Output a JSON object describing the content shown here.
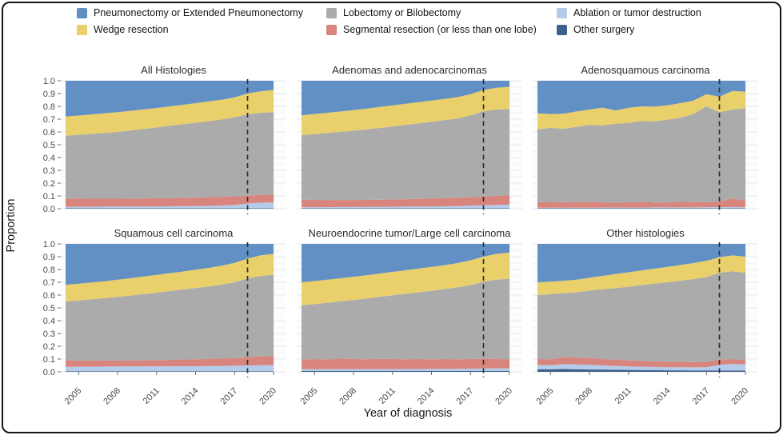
{
  "figure": {
    "ylabel": "Proportion",
    "xlabel": "Year of diagnosis",
    "outer_border_color": "#161616",
    "background_color": "#ffffff"
  },
  "legend": {
    "items": [
      {
        "label": "Pneumonectomy or Extended Pneumonectomy"
      },
      {
        "label": "Lobectomy or Bilobectomy"
      },
      {
        "label": "Ablation or tumor destruction"
      },
      {
        "label": "Wedge resection"
      },
      {
        "label": "Segmental resection (or less than one lobe)"
      },
      {
        "label": "Other surgery"
      }
    ]
  },
  "chart_data": {
    "type": "area",
    "stacked": true,
    "normalized": true,
    "grid": true,
    "legend_position": "top",
    "x_years": [
      2004,
      2005,
      2006,
      2007,
      2008,
      2009,
      2010,
      2011,
      2012,
      2013,
      2014,
      2015,
      2016,
      2017,
      2018,
      2019,
      2020
    ],
    "x_tick_years": [
      2005,
      2008,
      2011,
      2014,
      2017,
      2020
    ],
    "y_ticks": [
      0,
      0.1,
      0.2,
      0.3,
      0.4,
      0.5,
      0.6,
      0.7,
      0.8,
      0.9,
      1.0
    ],
    "ylim": [
      0,
      1
    ],
    "reference_line_year": 2018,
    "reference_line_style": "dashed",
    "series_colors": {
      "Pneumonectomy or Extended Pneumonectomy": "#6290c5",
      "Wedge resection": "#ead06b",
      "Lobectomy or Bilobectomy": "#ababab",
      "Segmental resection (or less than one lobe)": "#d8857e",
      "Ablation or tumor destruction": "#b5cbea",
      "Other surgery": "#3c618c"
    },
    "stack_order_bottom_to_top": [
      "Other surgery",
      "Ablation or tumor destruction",
      "Segmental resection (or less than one lobe)",
      "Lobectomy or Bilobectomy",
      "Wedge resection",
      "Pneumonectomy or Extended Pneumonectomy"
    ],
    "note": "cumulative_tops gives the cumulative proportion at the top of each stacked band per year; a band value = its top minus the top of the band below it.",
    "panels": [
      {
        "title": "All Histologies",
        "cumulative_tops": {
          "Other surgery": [
            0.005,
            0.005,
            0.005,
            0.005,
            0.005,
            0.005,
            0.005,
            0.005,
            0.005,
            0.005,
            0.005,
            0.005,
            0.005,
            0.005,
            0.005,
            0.005,
            0.005
          ],
          "Ablation or tumor destruction": [
            0.015,
            0.015,
            0.015,
            0.016,
            0.016,
            0.017,
            0.018,
            0.018,
            0.019,
            0.02,
            0.021,
            0.022,
            0.025,
            0.03,
            0.04,
            0.047,
            0.05
          ],
          "Segmental resection (or less than one lobe)": [
            0.08,
            0.079,
            0.078,
            0.078,
            0.078,
            0.079,
            0.08,
            0.081,
            0.083,
            0.085,
            0.087,
            0.09,
            0.093,
            0.097,
            0.102,
            0.108,
            0.112
          ],
          "Lobectomy or Bilobectomy": [
            0.57,
            0.578,
            0.585,
            0.592,
            0.6,
            0.612,
            0.623,
            0.635,
            0.648,
            0.66,
            0.672,
            0.684,
            0.697,
            0.715,
            0.738,
            0.75,
            0.755
          ],
          "Wedge resection": [
            0.72,
            0.728,
            0.737,
            0.746,
            0.755,
            0.765,
            0.776,
            0.787,
            0.8,
            0.812,
            0.825,
            0.838,
            0.852,
            0.87,
            0.9,
            0.918,
            0.928
          ],
          "Pneumonectomy or Extended Pneumonectomy": [
            1,
            1,
            1,
            1,
            1,
            1,
            1,
            1,
            1,
            1,
            1,
            1,
            1,
            1,
            1,
            1,
            1
          ]
        }
      },
      {
        "title": "Adenomas and adenocarcinomas",
        "cumulative_tops": {
          "Other surgery": [
            0.004,
            0.004,
            0.004,
            0.004,
            0.004,
            0.004,
            0.004,
            0.004,
            0.004,
            0.004,
            0.004,
            0.004,
            0.004,
            0.004,
            0.004,
            0.004,
            0.004
          ],
          "Ablation or tumor destruction": [
            0.012,
            0.012,
            0.012,
            0.013,
            0.013,
            0.014,
            0.014,
            0.015,
            0.016,
            0.017,
            0.018,
            0.019,
            0.021,
            0.024,
            0.028,
            0.03,
            0.032
          ],
          "Segmental resection (or less than one lobe)": [
            0.07,
            0.069,
            0.068,
            0.068,
            0.068,
            0.069,
            0.07,
            0.072,
            0.074,
            0.076,
            0.079,
            0.082,
            0.086,
            0.09,
            0.095,
            0.1,
            0.105
          ],
          "Lobectomy or Bilobectomy": [
            0.575,
            0.583,
            0.592,
            0.601,
            0.61,
            0.62,
            0.631,
            0.643,
            0.655,
            0.667,
            0.68,
            0.692,
            0.705,
            0.73,
            0.762,
            0.775,
            0.78
          ],
          "Wedge resection": [
            0.73,
            0.74,
            0.75,
            0.76,
            0.77,
            0.782,
            0.795,
            0.808,
            0.82,
            0.833,
            0.845,
            0.858,
            0.872,
            0.895,
            0.928,
            0.945,
            0.952
          ],
          "Pneumonectomy or Extended Pneumonectomy": [
            1,
            1,
            1,
            1,
            1,
            1,
            1,
            1,
            1,
            1,
            1,
            1,
            1,
            1,
            1,
            1,
            1
          ]
        }
      },
      {
        "title": "Adenosquamous carcinoma",
        "cumulative_tops": {
          "Other surgery": [
            0.003,
            0.003,
            0.003,
            0.003,
            0.003,
            0.003,
            0.003,
            0.003,
            0.003,
            0.003,
            0.003,
            0.003,
            0.003,
            0.003,
            0.003,
            0.003,
            0.003
          ],
          "Ablation or tumor destruction": [
            0.008,
            0.008,
            0.008,
            0.008,
            0.008,
            0.009,
            0.009,
            0.009,
            0.009,
            0.01,
            0.01,
            0.01,
            0.01,
            0.011,
            0.012,
            0.013,
            0.012
          ],
          "Segmental resection (or less than one lobe)": [
            0.05,
            0.055,
            0.048,
            0.052,
            0.055,
            0.05,
            0.046,
            0.05,
            0.053,
            0.048,
            0.05,
            0.055,
            0.052,
            0.05,
            0.055,
            0.08,
            0.065
          ],
          "Lobectomy or Bilobectomy": [
            0.62,
            0.632,
            0.625,
            0.64,
            0.655,
            0.652,
            0.664,
            0.67,
            0.685,
            0.683,
            0.695,
            0.712,
            0.74,
            0.8,
            0.755,
            0.775,
            0.785
          ],
          "Wedge resection": [
            0.745,
            0.74,
            0.742,
            0.76,
            0.775,
            0.79,
            0.768,
            0.788,
            0.8,
            0.798,
            0.808,
            0.825,
            0.845,
            0.895,
            0.875,
            0.92,
            0.915
          ],
          "Pneumonectomy or Extended Pneumonectomy": [
            1,
            1,
            1,
            1,
            1,
            1,
            1,
            1,
            1,
            1,
            1,
            1,
            1,
            1,
            1,
            1,
            1
          ]
        }
      },
      {
        "title": "Squamous cell carcinoma",
        "cumulative_tops": {
          "Other surgery": [
            0.005,
            0.005,
            0.005,
            0.005,
            0.005,
            0.005,
            0.005,
            0.005,
            0.005,
            0.005,
            0.005,
            0.005,
            0.005,
            0.005,
            0.005,
            0.005,
            0.005
          ],
          "Ablation or tumor destruction": [
            0.04,
            0.04,
            0.04,
            0.041,
            0.041,
            0.042,
            0.042,
            0.043,
            0.043,
            0.044,
            0.044,
            0.045,
            0.046,
            0.048,
            0.05,
            0.052,
            0.053
          ],
          "Segmental resection (or less than one lobe)": [
            0.09,
            0.089,
            0.088,
            0.088,
            0.088,
            0.089,
            0.09,
            0.092,
            0.094,
            0.096,
            0.098,
            0.101,
            0.104,
            0.108,
            0.113,
            0.12,
            0.125
          ],
          "Lobectomy or Bilobectomy": [
            0.55,
            0.558,
            0.567,
            0.576,
            0.585,
            0.596,
            0.607,
            0.619,
            0.631,
            0.643,
            0.655,
            0.668,
            0.681,
            0.7,
            0.73,
            0.75,
            0.758
          ],
          "Wedge resection": [
            0.68,
            0.689,
            0.698,
            0.708,
            0.72,
            0.732,
            0.745,
            0.758,
            0.771,
            0.784,
            0.798,
            0.812,
            0.83,
            0.852,
            0.885,
            0.91,
            0.922
          ],
          "Pneumonectomy or Extended Pneumonectomy": [
            1,
            1,
            1,
            1,
            1,
            1,
            1,
            1,
            1,
            1,
            1,
            1,
            1,
            1,
            1,
            1,
            1
          ]
        }
      },
      {
        "title": "Neuroendocrine tumor/Large cell carcinoma",
        "cumulative_tops": {
          "Other surgery": [
            0.006,
            0.006,
            0.006,
            0.006,
            0.006,
            0.006,
            0.006,
            0.006,
            0.006,
            0.006,
            0.006,
            0.006,
            0.006,
            0.006,
            0.006,
            0.006,
            0.006
          ],
          "Ablation or tumor destruction": [
            0.02,
            0.02,
            0.02,
            0.02,
            0.021,
            0.021,
            0.021,
            0.022,
            0.022,
            0.022,
            0.023,
            0.023,
            0.024,
            0.025,
            0.027,
            0.028,
            0.028
          ],
          "Segmental resection (or less than one lobe)": [
            0.095,
            0.1,
            0.097,
            0.103,
            0.1,
            0.098,
            0.102,
            0.1,
            0.098,
            0.1,
            0.097,
            0.1,
            0.098,
            0.1,
            0.103,
            0.1,
            0.098
          ],
          "Lobectomy or Bilobectomy": [
            0.52,
            0.53,
            0.54,
            0.551,
            0.562,
            0.574,
            0.586,
            0.598,
            0.61,
            0.622,
            0.634,
            0.647,
            0.66,
            0.678,
            0.705,
            0.72,
            0.728
          ],
          "Wedge resection": [
            0.7,
            0.71,
            0.72,
            0.731,
            0.743,
            0.755,
            0.768,
            0.781,
            0.794,
            0.807,
            0.82,
            0.834,
            0.85,
            0.872,
            0.9,
            0.922,
            0.932
          ],
          "Pneumonectomy or Extended Pneumonectomy": [
            1,
            1,
            1,
            1,
            1,
            1,
            1,
            1,
            1,
            1,
            1,
            1,
            1,
            1,
            1,
            1,
            1
          ]
        }
      },
      {
        "title": "Other histologies",
        "cumulative_tops": {
          "Other surgery": [
            0.02,
            0.02,
            0.022,
            0.02,
            0.018,
            0.018,
            0.016,
            0.015,
            0.014,
            0.013,
            0.012,
            0.012,
            0.011,
            0.011,
            0.01,
            0.01,
            0.01
          ],
          "Ablation or tumor destruction": [
            0.055,
            0.052,
            0.06,
            0.058,
            0.055,
            0.05,
            0.045,
            0.042,
            0.04,
            0.038,
            0.036,
            0.036,
            0.035,
            0.036,
            0.055,
            0.062,
            0.058
          ],
          "Segmental resection (or less than one lobe)": [
            0.1,
            0.098,
            0.115,
            0.112,
            0.108,
            0.1,
            0.095,
            0.09,
            0.086,
            0.082,
            0.08,
            0.078,
            0.076,
            0.078,
            0.095,
            0.1,
            0.092
          ],
          "Lobectomy or Bilobectomy": [
            0.6,
            0.608,
            0.615,
            0.622,
            0.635,
            0.645,
            0.655,
            0.665,
            0.678,
            0.69,
            0.7,
            0.712,
            0.725,
            0.74,
            0.775,
            0.785,
            0.775
          ],
          "Wedge resection": [
            0.7,
            0.705,
            0.712,
            0.72,
            0.735,
            0.75,
            0.765,
            0.778,
            0.792,
            0.806,
            0.82,
            0.835,
            0.85,
            0.868,
            0.895,
            0.91,
            0.9
          ],
          "Pneumonectomy or Extended Pneumonectomy": [
            1,
            1,
            1,
            1,
            1,
            1,
            1,
            1,
            1,
            1,
            1,
            1,
            1,
            1,
            1,
            1,
            1
          ]
        }
      }
    ]
  }
}
